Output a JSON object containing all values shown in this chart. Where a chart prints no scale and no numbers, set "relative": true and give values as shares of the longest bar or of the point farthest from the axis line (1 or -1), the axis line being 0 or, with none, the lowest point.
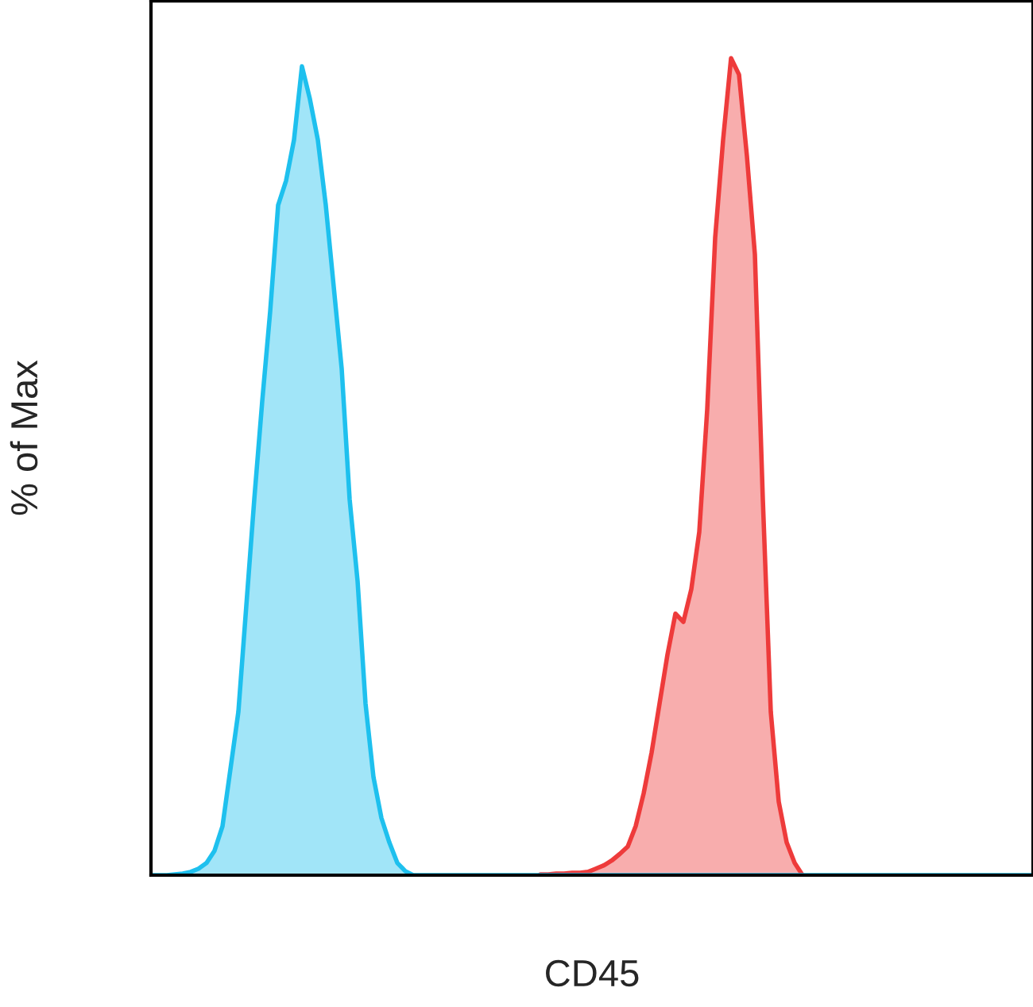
{
  "chart_data": {
    "type": "area",
    "relative": true,
    "xlabel": "CD45",
    "ylabel": "% of Max",
    "tick_labels": false,
    "categories": [
      null,
      null,
      null,
      null,
      null,
      null,
      null,
      null,
      null,
      null,
      null,
      null,
      null,
      null,
      null,
      null,
      null,
      null,
      null,
      null,
      null,
      null,
      null,
      null,
      null,
      null,
      null,
      null,
      null,
      null,
      null,
      null,
      null,
      null,
      null,
      null,
      null,
      null,
      null,
      null,
      null,
      null,
      null,
      null,
      null,
      null,
      null,
      null,
      null,
      null,
      null,
      null,
      null,
      null,
      null,
      null,
      null,
      null,
      null,
      null,
      null,
      null,
      null,
      null,
      null,
      null,
      null,
      null,
      null,
      null,
      null,
      null,
      null,
      null,
      null,
      null,
      null,
      null,
      null,
      null,
      null,
      null,
      null,
      null,
      null,
      null,
      null,
      null,
      null,
      null,
      null,
      null,
      null,
      null,
      null,
      null,
      null,
      null,
      null,
      null,
      null,
      null,
      null,
      null,
      null,
      null,
      null,
      null,
      null,
      null,
      null,
      null
    ],
    "series": [
      {
        "color": "#ee3b3b",
        "values": [
          null,
          null,
          null,
          null,
          null,
          null,
          null,
          null,
          null,
          null,
          null,
          null,
          null,
          null,
          null,
          null,
          null,
          null,
          null,
          null,
          null,
          null,
          null,
          null,
          null,
          null,
          null,
          null,
          null,
          null,
          null,
          null,
          null,
          null,
          null,
          null,
          null,
          null,
          null,
          null,
          null,
          null,
          null,
          null,
          null,
          null,
          null,
          null,
          null,
          0.001,
          0.001,
          0.002,
          0.002,
          0.003,
          0.003,
          0.004,
          0.008,
          0.012,
          0.018,
          0.026,
          0.035,
          0.06,
          0.1,
          0.15,
          0.21,
          0.27,
          0.32,
          0.31,
          0.35,
          0.42,
          0.57,
          0.78,
          0.9,
          1,
          0.98,
          0.88,
          0.76,
          0.46,
          0.2,
          0.09,
          0.04,
          0.015,
          0,
          null,
          null,
          null,
          null,
          null,
          null,
          null,
          null,
          null,
          null,
          null,
          null,
          null,
          null,
          null,
          null,
          null,
          null,
          null,
          null,
          null,
          null,
          null,
          null,
          null,
          null,
          null,
          null,
          null
        ]
      },
      {
        "color": "#1ec0ee",
        "values": [
          0,
          0,
          0,
          0.001,
          0.002,
          0.004,
          0.008,
          0.015,
          0.03,
          0.06,
          0.13,
          0.2,
          0.33,
          0.46,
          0.58,
          0.69,
          0.82,
          0.85,
          0.9,
          0.99,
          0.95,
          0.9,
          0.82,
          0.72,
          0.62,
          0.46,
          0.36,
          0.21,
          0.12,
          0.07,
          0.04,
          0.015,
          0.005,
          0,
          0,
          0,
          0,
          0,
          0,
          0,
          0,
          0,
          0,
          0,
          0,
          0,
          0,
          0,
          0,
          0,
          0,
          0,
          0,
          0,
          0,
          0,
          0,
          0,
          0,
          0,
          0,
          0,
          0,
          0,
          0,
          0,
          0,
          0,
          0,
          0,
          0,
          0,
          0,
          0,
          0,
          0,
          0,
          0,
          0,
          0,
          0,
          0,
          0,
          0,
          0,
          0,
          0,
          0,
          0,
          0,
          0,
          0,
          0,
          0,
          0,
          0,
          0,
          0,
          0,
          0,
          0,
          0,
          0,
          0,
          0,
          0,
          0,
          0,
          0,
          0,
          0,
          0
        ]
      }
    ]
  }
}
